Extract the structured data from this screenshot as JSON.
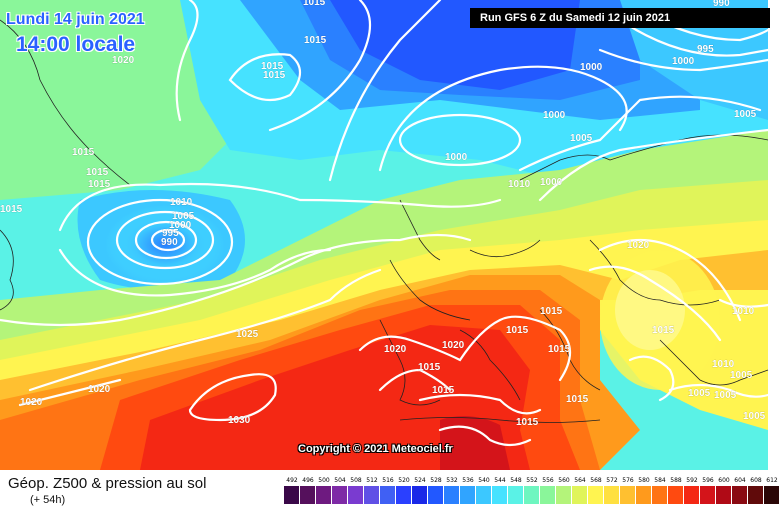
{
  "header": {
    "date": "Lundi 14 juin 2021",
    "time": "14:00 locale",
    "run": "Run GFS 6 Z du Samedi 12 juin 2021"
  },
  "footer": {
    "copyright": "Copyright © 2021 Meteociel.fr",
    "title": "Géop. Z500 & pression au sol",
    "subtitle": "(+ 54h)"
  },
  "legend": {
    "values": [
      "492",
      "496",
      "500",
      "504",
      "508",
      "512",
      "516",
      "520",
      "524",
      "528",
      "532",
      "536",
      "540",
      "544",
      "548",
      "552",
      "556",
      "560",
      "564",
      "568",
      "572",
      "576",
      "580",
      "584",
      "588",
      "592",
      "596",
      "600",
      "604",
      "608",
      "612"
    ],
    "colors": [
      "#3a0848",
      "#55105c",
      "#6e1a80",
      "#7e2aa6",
      "#7a3bd0",
      "#6050e6",
      "#4060f4",
      "#2a40ff",
      "#1a28e8",
      "#2258ff",
      "#2a80ff",
      "#30a4ff",
      "#3cc8ff",
      "#46e2ff",
      "#5af2e6",
      "#6ef6c0",
      "#8af69a",
      "#b4f47a",
      "#e0f45a",
      "#fff450",
      "#ffe040",
      "#ffc030",
      "#ff9a1c",
      "#ff7414",
      "#ff4a10",
      "#f42814",
      "#d4141a",
      "#b00a16",
      "#8a0a12",
      "#600a0a",
      "#2a0606"
    ]
  },
  "isobar_labels": [
    "1015",
    "1015",
    "1020",
    "1015",
    "1015",
    "1015",
    "1015",
    "1015",
    "1010",
    "1005",
    "1000",
    "995",
    "990",
    "1015",
    "1000",
    "1000",
    "1000",
    "1005",
    "1000",
    "1010",
    "1000",
    "1005",
    "1020",
    "1010",
    "1015",
    "1010",
    "1005",
    "1005",
    "1005",
    "1020",
    "1020",
    "1015",
    "1015",
    "1015",
    "1015",
    "1015",
    "1015",
    "1025",
    "1020",
    "1020",
    "1030",
    "1015",
    "990",
    "995",
    "1005"
  ]
}
